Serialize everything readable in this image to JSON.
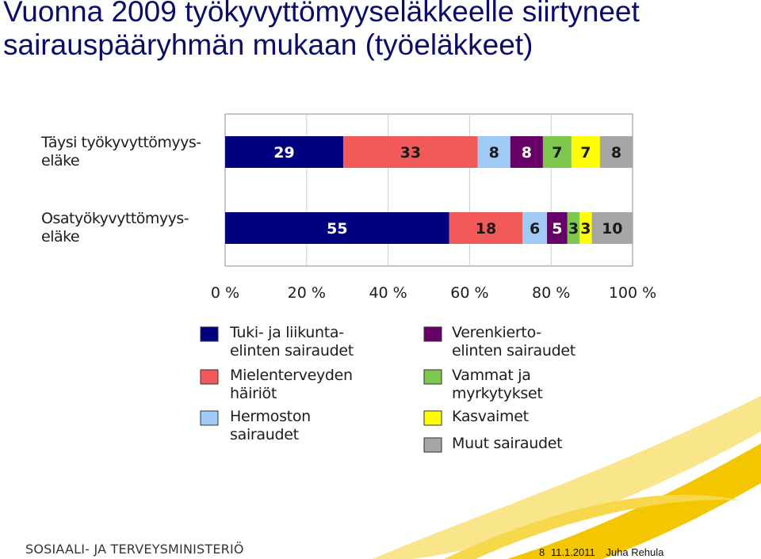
{
  "slide": {
    "title_line1": "Vuonna 2009 työkyvyttömyyseläkkeelle siirtyneet",
    "title_line2": "sairauspääryhmän mukaan (työeläkkeet)"
  },
  "footer": {
    "ministry": "SOSIAALI- JA TERVEYSMINISTERIÖ",
    "page": "8",
    "date": "11.1.2011",
    "author": "Juha Rehula"
  },
  "colors": {
    "accent_swoosh": "#f3c600",
    "accent_swoosh_light": "#f9e58a",
    "title": "#0b0b6a"
  },
  "chart_data": {
    "type": "bar",
    "orientation": "horizontal",
    "stacked": true,
    "percent_scale": true,
    "categories": [
      [
        "Täysi työkyvyttömyys-",
        "eläke"
      ],
      [
        "Osatyökyvyttömyys-",
        "eläke"
      ]
    ],
    "series": [
      {
        "name": "Tuki- ja liikunta-elinten sairaudet",
        "legend_lines": [
          "Tuki- ja liikunta-",
          "elinten sairaudet"
        ],
        "color": "#000080",
        "label_color": "#ffffff",
        "values": [
          29,
          55
        ]
      },
      {
        "name": "Mielenterveyden häiriöt",
        "legend_lines": [
          "Mielenterveyden",
          "häiriöt"
        ],
        "color": "#f25a5a",
        "label_color": "#1a1a1a",
        "values": [
          33,
          18
        ]
      },
      {
        "name": "Hermoston sairaudet",
        "legend_lines": [
          "Hermoston",
          "sairaudet"
        ],
        "color": "#9fcaf5",
        "label_color": "#1a1a1a",
        "values": [
          8,
          6
        ]
      },
      {
        "name": "Verenkierto-elinten sairaudet",
        "legend_lines": [
          "Verenkierto-",
          "elinten sairaudet"
        ],
        "color": "#660066",
        "label_color": "#ffffff",
        "values": [
          8,
          5
        ]
      },
      {
        "name": "Vammat ja myrkytykset",
        "legend_lines": [
          "Vammat ja",
          "myrkytykset"
        ],
        "color": "#7fc850",
        "label_color": "#1a1a1a",
        "values": [
          7,
          3
        ]
      },
      {
        "name": "Kasvaimet",
        "legend_lines": [
          "Kasvaimet"
        ],
        "color": "#ffff00",
        "label_color": "#1a1a1a",
        "values": [
          7,
          3
        ]
      },
      {
        "name": "Muut sairaudet",
        "legend_lines": [
          "Muut sairaudet"
        ],
        "color": "#a6a6a6",
        "label_color": "#1a1a1a",
        "values": [
          8,
          10
        ]
      }
    ],
    "xticks": [
      "0 %",
      "20 %",
      "40 %",
      "60 %",
      "80 %",
      "100 %"
    ],
    "xlim": [
      0,
      100
    ],
    "grid": true,
    "legend_position": "bottom",
    "title": "",
    "xlabel": "",
    "ylabel": ""
  }
}
